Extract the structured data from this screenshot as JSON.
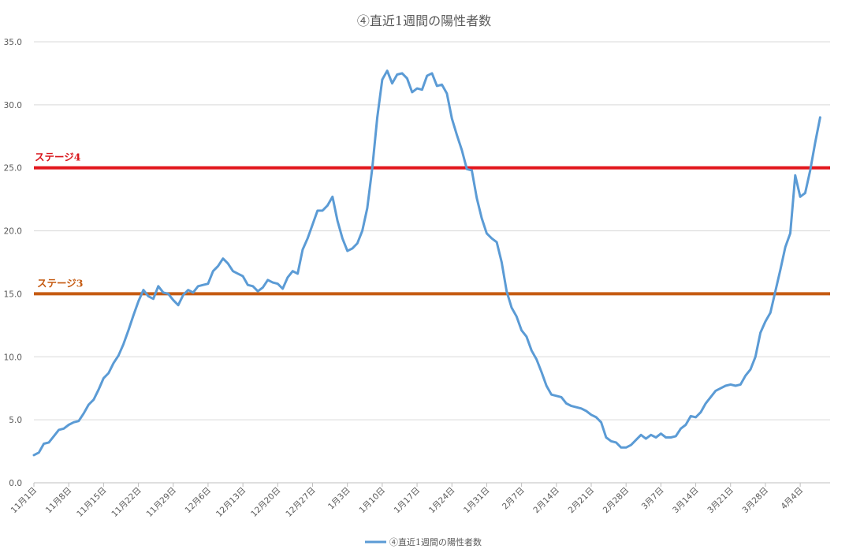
{
  "chart_data": {
    "type": "line",
    "title": "④直近1週間の陽性者数",
    "xlabel": "",
    "ylabel": "",
    "ylim": [
      0,
      35
    ],
    "yticks": [
      "0.0",
      "5.0",
      "10.0",
      "15.0",
      "20.0",
      "25.0",
      "30.0",
      "35.0"
    ],
    "grid": true,
    "legend_position": "bottom",
    "x_tick_labels": [
      "11月1日",
      "11月8日",
      "11月15日",
      "11月22日",
      "11月29日",
      "12月6日",
      "12月13日",
      "12月20日",
      "12月27日",
      "1月3日",
      "1月10日",
      "1月17日",
      "1月24日",
      "1月31日",
      "2月7日",
      "2月14日",
      "2月21日",
      "2月28日",
      "3月7日",
      "3月14日",
      "3月21日",
      "3月28日",
      "4月4日"
    ],
    "reference_lines": [
      {
        "label": "ステージ4",
        "value": 25,
        "color": "#e2161c",
        "label_color": "#d9161c"
      },
      {
        "label": "ステージ3",
        "value": 15,
        "color": "#c55a11",
        "label_color": "#c55a11"
      }
    ],
    "series": [
      {
        "name": "④直近1週間の陽性者数",
        "color": "#5b9bd5",
        "values": [
          2.2,
          2.4,
          3.1,
          3.2,
          3.7,
          4.2,
          4.3,
          4.6,
          4.8,
          4.9,
          5.5,
          6.2,
          6.6,
          7.4,
          8.3,
          8.7,
          9.5,
          10.1,
          11.0,
          12.1,
          13.3,
          14.4,
          15.3,
          14.8,
          14.6,
          15.6,
          15.1,
          15.0,
          14.5,
          14.1,
          14.9,
          15.3,
          15.1,
          15.6,
          15.7,
          15.8,
          16.8,
          17.2,
          17.8,
          17.4,
          16.8,
          16.6,
          16.4,
          15.7,
          15.6,
          15.2,
          15.5,
          16.1,
          15.9,
          15.8,
          15.4,
          16.3,
          16.8,
          16.6,
          18.5,
          19.4,
          20.5,
          21.6,
          21.6,
          22.0,
          22.7,
          20.8,
          19.4,
          18.4,
          18.6,
          19.0,
          20.0,
          21.8,
          25.0,
          29.0,
          32.0,
          32.7,
          31.7,
          32.4,
          32.5,
          32.1,
          31.0,
          31.3,
          31.2,
          32.3,
          32.5,
          31.5,
          31.6,
          30.9,
          28.9,
          27.6,
          26.4,
          24.9,
          24.8,
          22.6,
          21.0,
          19.8,
          19.4,
          19.1,
          17.5,
          15.2,
          13.9,
          13.2,
          12.1,
          11.6,
          10.5,
          9.8,
          8.8,
          7.7,
          7.0,
          6.9,
          6.8,
          6.3,
          6.1,
          6.0,
          5.9,
          5.7,
          5.4,
          5.2,
          4.8,
          3.6,
          3.3,
          3.2,
          2.8,
          2.8,
          3.0,
          3.4,
          3.8,
          3.5,
          3.8,
          3.6,
          3.9,
          3.6,
          3.6,
          3.7,
          4.3,
          4.6,
          5.3,
          5.2,
          5.6,
          6.3,
          6.8,
          7.3,
          7.5,
          7.7,
          7.8,
          7.7,
          7.8,
          8.5,
          9.0,
          10.0,
          11.9,
          12.8,
          13.5,
          15.2,
          16.9,
          18.7,
          19.8,
          24.4,
          22.7,
          23.0,
          24.8,
          27.0,
          29.0
        ]
      }
    ]
  }
}
